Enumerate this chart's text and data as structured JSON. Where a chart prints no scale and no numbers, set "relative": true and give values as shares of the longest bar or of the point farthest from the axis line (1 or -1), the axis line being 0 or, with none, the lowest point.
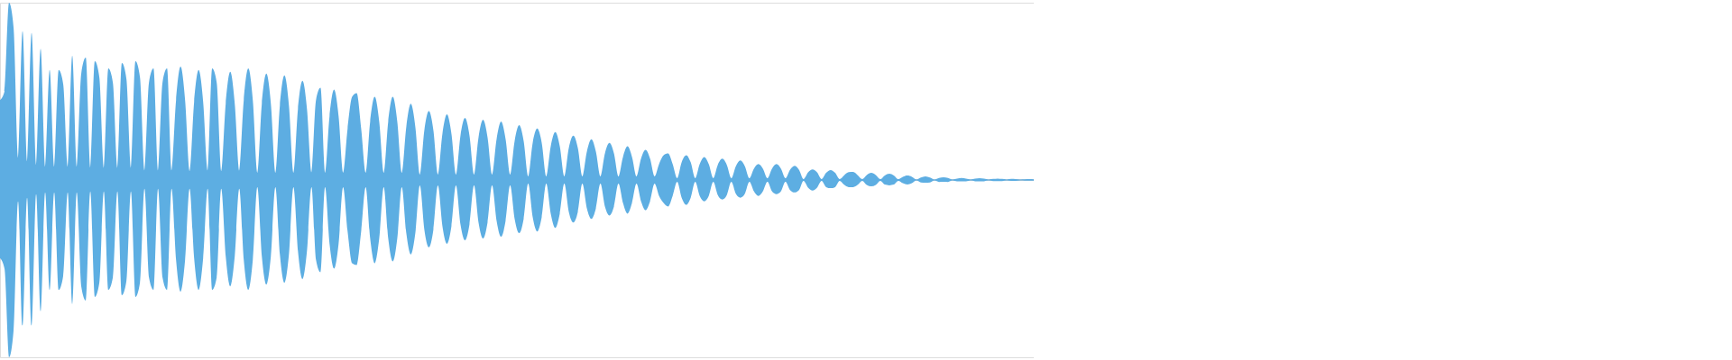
{
  "chart_data": {
    "type": "area",
    "relative": true,
    "categories": [
      null,
      null,
      null,
      null,
      null,
      null,
      null,
      null,
      null,
      null,
      null,
      null,
      null,
      null,
      null,
      null,
      null,
      null,
      null,
      null,
      null,
      null,
      null,
      null,
      null,
      null,
      null,
      null,
      null,
      null,
      null,
      null,
      null,
      null,
      null,
      null,
      null,
      null,
      null,
      null,
      null,
      null,
      null,
      null,
      null,
      null,
      null,
      null,
      null,
      null,
      null,
      null,
      null,
      null,
      null,
      null,
      null,
      null,
      null,
      null,
      null,
      null,
      null,
      null,
      null,
      null,
      null,
      null,
      null,
      null,
      null,
      null,
      null,
      null,
      null,
      null,
      null,
      null,
      null,
      null,
      null,
      null,
      null,
      null,
      null,
      null,
      null,
      null,
      null,
      null,
      null,
      null,
      null,
      null,
      null,
      null,
      null,
      null,
      null,
      null,
      null,
      null,
      null,
      null,
      null,
      null,
      null,
      null,
      null,
      null,
      null,
      null,
      null,
      null,
      null,
      null,
      null,
      null,
      null,
      null,
      null,
      null,
      null,
      null,
      null,
      null,
      null,
      null,
      null,
      null,
      null,
      null,
      null,
      null,
      null,
      null,
      null,
      null,
      null,
      null,
      null,
      null,
      null,
      null,
      null,
      null,
      null,
      null,
      null,
      null,
      null,
      null,
      null,
      null,
      null,
      null,
      null,
      null,
      null,
      null,
      null,
      null,
      null,
      null,
      null,
      null,
      null,
      null,
      null,
      null,
      null,
      null,
      null,
      null,
      null,
      null,
      null,
      null,
      null,
      null,
      null,
      null,
      null,
      null,
      null,
      null,
      null,
      null,
      null,
      null,
      null,
      null,
      null,
      null,
      null,
      null,
      null,
      null,
      null,
      null,
      null,
      null,
      null,
      null,
      null,
      null,
      null,
      null,
      null,
      null,
      null,
      null,
      null,
      null,
      null,
      null,
      null,
      null,
      null,
      null,
      null,
      null,
      null,
      null,
      null,
      null,
      null,
      null,
      null,
      null
    ],
    "series": [
      {
        "color": "#5dade2",
        "values": [
          0.45,
          0.5,
          1.0,
          0.86,
          0.12,
          0.84,
          0.1,
          0.83,
          0.08,
          0.74,
          0.07,
          0.62,
          0.07,
          0.62,
          0.54,
          0.07,
          0.7,
          0.07,
          0.6,
          0.69,
          0.065,
          0.67,
          0.58,
          0.065,
          0.63,
          0.55,
          0.065,
          0.66,
          0.57,
          0.065,
          0.67,
          0.58,
          0.05,
          0.55,
          0.63,
          0.05,
          0.55,
          0.63,
          0.05,
          0.45,
          0.64,
          0.45,
          0.05,
          0.44,
          0.62,
          0.44,
          0.05,
          0.63,
          0.55,
          0.05,
          0.43,
          0.61,
          0.43,
          0.05,
          0.45,
          0.63,
          0.45,
          0.04,
          0.43,
          0.6,
          0.43,
          0.04,
          0.42,
          0.59,
          0.42,
          0.04,
          0.4,
          0.56,
          0.4,
          0.04,
          0.45,
          0.52,
          0.04,
          0.36,
          0.51,
          0.36,
          0.04,
          0.29,
          0.47,
          0.49,
          0.29,
          0.04,
          0.33,
          0.47,
          0.33,
          0.04,
          0.33,
          0.47,
          0.33,
          0.04,
          0.3,
          0.43,
          0.3,
          0.03,
          0.28,
          0.39,
          0.28,
          0.03,
          0.26,
          0.37,
          0.26,
          0.03,
          0.25,
          0.35,
          0.25,
          0.03,
          0.24,
          0.34,
          0.24,
          0.03,
          0.23,
          0.33,
          0.23,
          0.03,
          0.22,
          0.31,
          0.22,
          0.02,
          0.21,
          0.29,
          0.21,
          0.02,
          0.19,
          0.27,
          0.19,
          0.02,
          0.18,
          0.25,
          0.18,
          0.02,
          0.16,
          0.23,
          0.16,
          0.02,
          0.15,
          0.21,
          0.15,
          0.02,
          0.13,
          0.19,
          0.13,
          0.02,
          0.12,
          0.17,
          0.12,
          0.02,
          0.09,
          0.14,
          0.15,
          0.09,
          0.01,
          0.1,
          0.14,
          0.1,
          0.01,
          0.09,
          0.13,
          0.09,
          0.01,
          0.085,
          0.12,
          0.085,
          0.01,
          0.078,
          0.11,
          0.078,
          0.01,
          0.064,
          0.09,
          0.064,
          0.01,
          0.064,
          0.09,
          0.064,
          0.01,
          0.057,
          0.08,
          0.057,
          0.005,
          0.043,
          0.06,
          0.043,
          0.005,
          0.04,
          0.056,
          0.04,
          0.005,
          0.027,
          0.044,
          0.046,
          0.027,
          0.005,
          0.028,
          0.04,
          0.028,
          0.005,
          0.026,
          0.036,
          0.026,
          0.005,
          0.018,
          0.025,
          0.018,
          0.003,
          0.014,
          0.02,
          0.014,
          0.003,
          0.011,
          0.015,
          0.011,
          0.003,
          0.008,
          0.012,
          0.008,
          0.003,
          0.007,
          0.01,
          0.007,
          0.003,
          0.006,
          0.008,
          0.006,
          0.003,
          0.006,
          0.005,
          0.003,
          0.004,
          0.005,
          0.004
        ]
      },
      {
        "color": "#5daee2",
        "values": [
          -0.44,
          -0.5,
          -1.0,
          -0.85,
          -0.12,
          -0.82,
          -0.1,
          -0.82,
          -0.08,
          -0.74,
          -0.07,
          -0.62,
          -0.07,
          -0.62,
          -0.54,
          -0.07,
          -0.7,
          -0.07,
          -0.6,
          -0.68,
          -0.065,
          -0.66,
          -0.58,
          -0.065,
          -0.62,
          -0.55,
          -0.065,
          -0.65,
          -0.57,
          -0.065,
          -0.66,
          -0.58,
          -0.05,
          -0.55,
          -0.62,
          -0.05,
          -0.55,
          -0.62,
          -0.05,
          -0.45,
          -0.63,
          -0.45,
          -0.05,
          -0.44,
          -0.62,
          -0.44,
          -0.05,
          -0.62,
          -0.55,
          -0.05,
          -0.43,
          -0.6,
          -0.43,
          -0.05,
          -0.45,
          -0.62,
          -0.45,
          -0.04,
          -0.43,
          -0.59,
          -0.43,
          -0.04,
          -0.42,
          -0.58,
          -0.42,
          -0.04,
          -0.4,
          -0.56,
          -0.4,
          -0.04,
          -0.45,
          -0.52,
          -0.04,
          -0.36,
          -0.5,
          -0.36,
          -0.04,
          -0.29,
          -0.47,
          -0.48,
          -0.29,
          -0.04,
          -0.33,
          -0.47,
          -0.33,
          -0.04,
          -0.33,
          -0.46,
          -0.33,
          -0.04,
          -0.3,
          -0.42,
          -0.3,
          -0.03,
          -0.28,
          -0.38,
          -0.28,
          -0.03,
          -0.26,
          -0.36,
          -0.26,
          -0.03,
          -0.25,
          -0.34,
          -0.25,
          -0.03,
          -0.24,
          -0.33,
          -0.24,
          -0.03,
          -0.23,
          -0.32,
          -0.23,
          -0.03,
          -0.22,
          -0.3,
          -0.22,
          -0.02,
          -0.21,
          -0.29,
          -0.21,
          -0.02,
          -0.19,
          -0.27,
          -0.19,
          -0.02,
          -0.18,
          -0.24,
          -0.18,
          -0.02,
          -0.16,
          -0.22,
          -0.16,
          -0.02,
          -0.15,
          -0.2,
          -0.15,
          -0.02,
          -0.13,
          -0.19,
          -0.13,
          -0.02,
          -0.12,
          -0.17,
          -0.12,
          -0.02,
          -0.09,
          -0.13,
          -0.15,
          -0.09,
          -0.01,
          -0.1,
          -0.14,
          -0.1,
          -0.01,
          -0.09,
          -0.12,
          -0.09,
          -0.01,
          -0.085,
          -0.11,
          -0.085,
          -0.01,
          -0.078,
          -0.1,
          -0.078,
          -0.01,
          -0.064,
          -0.09,
          -0.064,
          -0.01,
          -0.064,
          -0.08,
          -0.064,
          -0.01,
          -0.057,
          -0.07,
          -0.057,
          -0.005,
          -0.043,
          -0.06,
          -0.043,
          -0.005,
          -0.04,
          -0.046,
          -0.04,
          -0.005,
          -0.027,
          -0.04,
          -0.04,
          -0.027,
          -0.005,
          -0.028,
          -0.036,
          -0.028,
          -0.005,
          -0.026,
          -0.03,
          -0.026,
          -0.005,
          -0.018,
          -0.025,
          -0.018,
          -0.003,
          -0.014,
          -0.015,
          -0.014,
          -0.003,
          -0.011,
          -0.01,
          -0.011,
          -0.003,
          -0.008,
          -0.008,
          -0.008,
          -0.003,
          -0.007,
          -0.008,
          -0.007,
          -0.003,
          -0.006,
          -0.006,
          -0.006,
          -0.003,
          -0.005,
          -0.005,
          -0.003,
          -0.004,
          -0.004,
          -0.004
        ]
      }
    ]
  }
}
